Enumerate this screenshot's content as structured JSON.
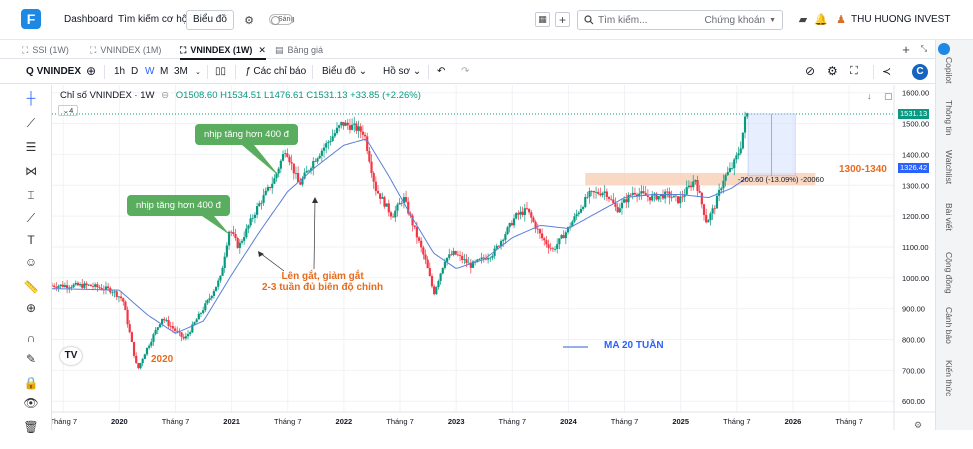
{
  "app": {
    "logo_letter": "F",
    "nav": [
      "Dashboard",
      "Tìm kiếm cơ hội",
      "Biểu đồ"
    ],
    "theme_toggle_label": "Sáng",
    "search_placeholder": "Tìm kiếm...",
    "search_scope": "Chứng khoán",
    "user_name": "THU HUONG INVEST"
  },
  "tabs": [
    {
      "label": "SSI (1W)",
      "active": false
    },
    {
      "label": "VNINDEX (1M)",
      "active": false
    },
    {
      "label": "VNINDEX (1W)",
      "active": true
    },
    {
      "label": "Bảng giá",
      "active": false
    }
  ],
  "toolbar": {
    "symbol": "VNINDEX",
    "intervals": [
      "1h",
      "D",
      "W",
      "M",
      "3M"
    ],
    "active_interval": "W",
    "indicators_label": "Các chỉ báo",
    "chart_type_label": "Biểu đồ",
    "profile_label": "Hồ sơ"
  },
  "sidebar_tabs": [
    "Copilot",
    "Thông tin",
    "Watchlist",
    "Bài viết",
    "Cộng đồng",
    "Cảnh báo",
    "Kiến thức"
  ],
  "chart_legend": {
    "title": "Chỉ số VNINDEX · 1W",
    "o": "1508.60",
    "h": "1534.51",
    "l": "1476.61",
    "c": "1531.13",
    "change": "+33.85 (+2.26%)",
    "collapsed_count": "4"
  },
  "annotations": {
    "bubble1": "nhịp tăng hơn 400 đ",
    "bubble2": "nhịp tăng hơn 400 đ",
    "note_line1": "Lên gắt, giảm gắt",
    "note_line2": "2-3 tuần đủ biên độ chỉnh",
    "label_2020": "2020",
    "zone_label": "1300-1340",
    "ma_label": "MA 20 TUẦN",
    "measure": "-200.60 (-13.09%) -20060"
  },
  "price_tags": {
    "last": "1531.13",
    "ma": "1326.42"
  },
  "colors": {
    "up": "#089981",
    "down": "#f23645",
    "ma": "#5b7fd6",
    "zone": "#f7cbb0",
    "bubble": "#5aac5f",
    "annot": "#e86a1d"
  },
  "chart_data": {
    "type": "candlestick",
    "y_ticks": [
      1600,
      1500,
      1400,
      1300,
      1200,
      1100,
      1000,
      900,
      800,
      700,
      600
    ],
    "ylim": [
      565,
      1625
    ],
    "x_tick_labels": [
      "Tháng 7",
      "2020",
      "Tháng 7",
      "2021",
      "Tháng 7",
      "2022",
      "Tháng 7",
      "2023",
      "Tháng 7",
      "2024",
      "Tháng 7",
      "2025",
      "Tháng 7",
      "2026",
      "Tháng 7"
    ],
    "x_tick_years": [
      2019.5,
      2020,
      2020.5,
      2021,
      2021.5,
      2022,
      2022.5,
      2023,
      2023.5,
      2024,
      2024.5,
      2025,
      2025.5,
      2026,
      2026.5
    ],
    "bold_years": [
      2020,
      2021,
      2022,
      2023,
      2024,
      2025,
      2026
    ],
    "xlim": [
      2019.4,
      2026.9
    ],
    "price_path": [
      [
        2019.4,
        975
      ],
      [
        2019.75,
        975
      ],
      [
        2019.95,
        960
      ],
      [
        2020.05,
        930
      ],
      [
        2020.18,
        700
      ],
      [
        2020.25,
        760
      ],
      [
        2020.4,
        870
      ],
      [
        2020.6,
        800
      ],
      [
        2020.8,
        920
      ],
      [
        2020.92,
        1000
      ],
      [
        2021.0,
        1160
      ],
      [
        2021.08,
        1100
      ],
      [
        2021.25,
        1230
      ],
      [
        2021.4,
        1320
      ],
      [
        2021.5,
        1420
      ],
      [
        2021.62,
        1300
      ],
      [
        2021.75,
        1380
      ],
      [
        2021.9,
        1450
      ],
      [
        2022.0,
        1500
      ],
      [
        2022.1,
        1490
      ],
      [
        2022.2,
        1470
      ],
      [
        2022.3,
        1290
      ],
      [
        2022.45,
        1200
      ],
      [
        2022.55,
        1260
      ],
      [
        2022.75,
        1050
      ],
      [
        2022.82,
        950
      ],
      [
        2022.92,
        1060
      ],
      [
        2023.0,
        1080
      ],
      [
        2023.15,
        1040
      ],
      [
        2023.35,
        1080
      ],
      [
        2023.55,
        1200
      ],
      [
        2023.65,
        1220
      ],
      [
        2023.78,
        1130
      ],
      [
        2023.88,
        1090
      ],
      [
        2024.0,
        1150
      ],
      [
        2024.2,
        1270
      ],
      [
        2024.35,
        1280
      ],
      [
        2024.45,
        1220
      ],
      [
        2024.6,
        1280
      ],
      [
        2024.75,
        1260
      ],
      [
        2024.9,
        1270
      ],
      [
        2025.0,
        1250
      ],
      [
        2025.15,
        1320
      ],
      [
        2025.25,
        1180
      ],
      [
        2025.32,
        1230
      ],
      [
        2025.4,
        1320
      ],
      [
        2025.48,
        1360
      ],
      [
        2025.55,
        1420
      ],
      [
        2025.6,
        1531
      ]
    ],
    "ma_path": [
      [
        2019.4,
        965
      ],
      [
        2020.0,
        960
      ],
      [
        2020.25,
        880
      ],
      [
        2020.5,
        820
      ],
      [
        2020.75,
        860
      ],
      [
        2021.0,
        1010
      ],
      [
        2021.25,
        1150
      ],
      [
        2021.5,
        1280
      ],
      [
        2021.75,
        1360
      ],
      [
        2022.0,
        1430
      ],
      [
        2022.2,
        1450
      ],
      [
        2022.4,
        1330
      ],
      [
        2022.6,
        1200
      ],
      [
        2022.8,
        1080
      ],
      [
        2023.0,
        1030
      ],
      [
        2023.25,
        1060
      ],
      [
        2023.5,
        1130
      ],
      [
        2023.75,
        1170
      ],
      [
        2024.0,
        1160
      ],
      [
        2024.25,
        1210
      ],
      [
        2024.5,
        1260
      ],
      [
        2024.75,
        1270
      ],
      [
        2025.0,
        1270
      ],
      [
        2025.25,
        1260
      ],
      [
        2025.45,
        1290
      ],
      [
        2025.6,
        1326
      ]
    ],
    "zone": {
      "from_year": 2024.15,
      "to_year": 2026.2,
      "low": 1300,
      "high": 1340
    },
    "measure_box": {
      "from_year": 2025.6,
      "to_year": 2026.02,
      "from_price": 1531.13,
      "to_price": 1330.53
    },
    "resistance_price": 1531.13
  }
}
